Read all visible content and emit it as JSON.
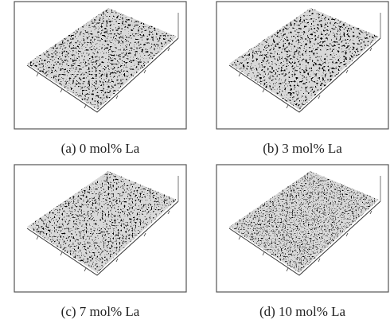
{
  "panels": [
    {
      "caption": "(a) 0 mol% La"
    },
    {
      "caption": "(b) 3 mol% La"
    },
    {
      "caption": "(c) 7 mol% La"
    },
    {
      "caption": "(d) 10 mol% La"
    }
  ]
}
